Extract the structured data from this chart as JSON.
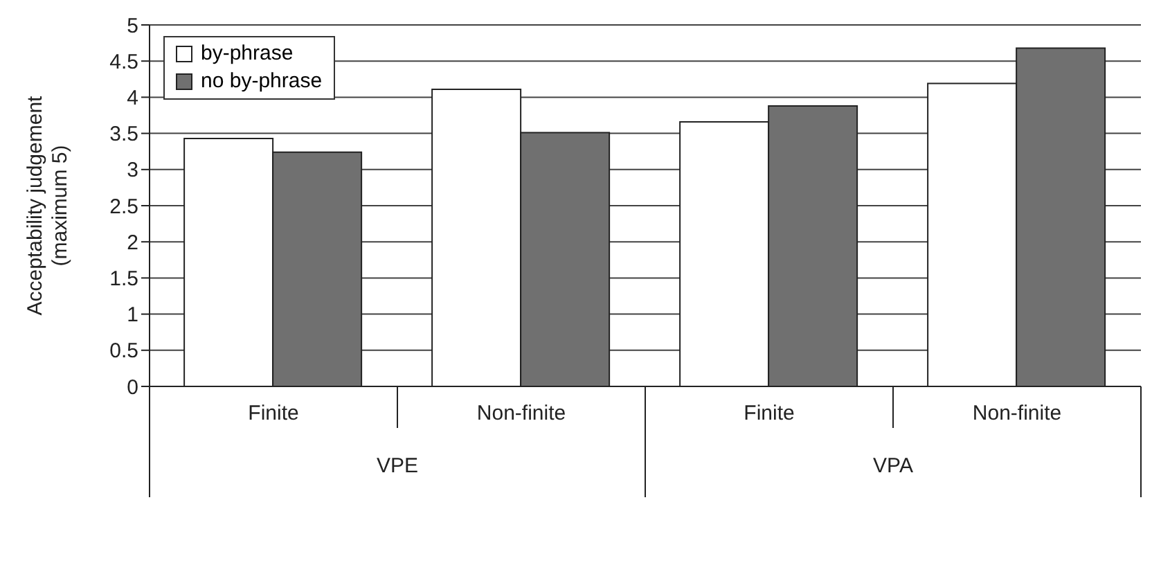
{
  "chart_data": {
    "type": "bar",
    "ylabel": "Acceptability judgement\n(maximum 5)",
    "categories": [
      "Finite",
      "Non-finite",
      "Finite",
      "Non-finite"
    ],
    "series": [
      {
        "name": "by-phrase",
        "color": "#ffffff",
        "values": [
          3.43,
          4.11,
          3.66,
          4.19
        ]
      },
      {
        "name": "no by-phrase",
        "color": "#707070",
        "values": [
          3.24,
          3.51,
          3.88,
          4.68
        ]
      }
    ],
    "annotations": [
      "VPE",
      "VPA"
    ],
    "ylim": [
      0,
      5
    ],
    "yticks": [
      0,
      0.5,
      1,
      1.5,
      2,
      2.5,
      3,
      3.5,
      4,
      4.5,
      5
    ],
    "grid": "y",
    "legend": "top left"
  }
}
